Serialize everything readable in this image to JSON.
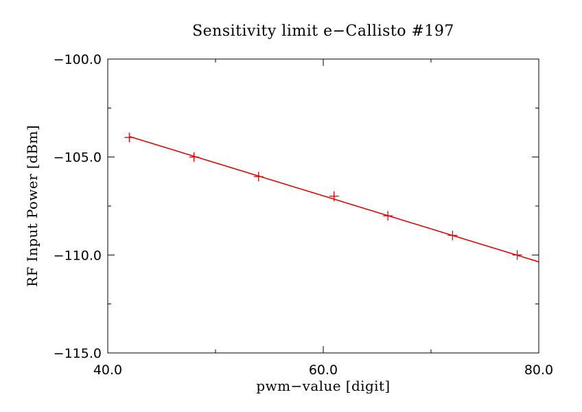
{
  "chart_data": {
    "type": "line",
    "title": "Sensitivity limit e−Callisto #197",
    "xlabel": "pwm−value [digit]",
    "ylabel": "RF Input Power [dBm]",
    "xlim": [
      40.0,
      80.0
    ],
    "ylim": [
      -115.0,
      -100.0
    ],
    "x_ticks": [
      40.0,
      60.0,
      80.0
    ],
    "x_tick_labels": [
      "40.0",
      "60.0",
      "80.0"
    ],
    "y_ticks": [
      -100.0,
      -105.0,
      -110.0,
      -115.0
    ],
    "y_tick_labels": [
      "−100.0",
      "−105.0",
      "−110.0",
      "−115.0"
    ],
    "x_minor_step": 10,
    "y_minor_step": 2.5,
    "grid": false,
    "series": [
      {
        "marker": "+",
        "color": "#e00000",
        "x": [
          42,
          48,
          54,
          61,
          66,
          72,
          78
        ],
        "y": [
          -104,
          -105,
          -106,
          -107,
          -108,
          -109,
          -110
        ]
      }
    ],
    "fit_line": {
      "color": "#e00000",
      "x": [
        42,
        80
      ],
      "y": [
        -103.95,
        -110.35
      ]
    }
  }
}
